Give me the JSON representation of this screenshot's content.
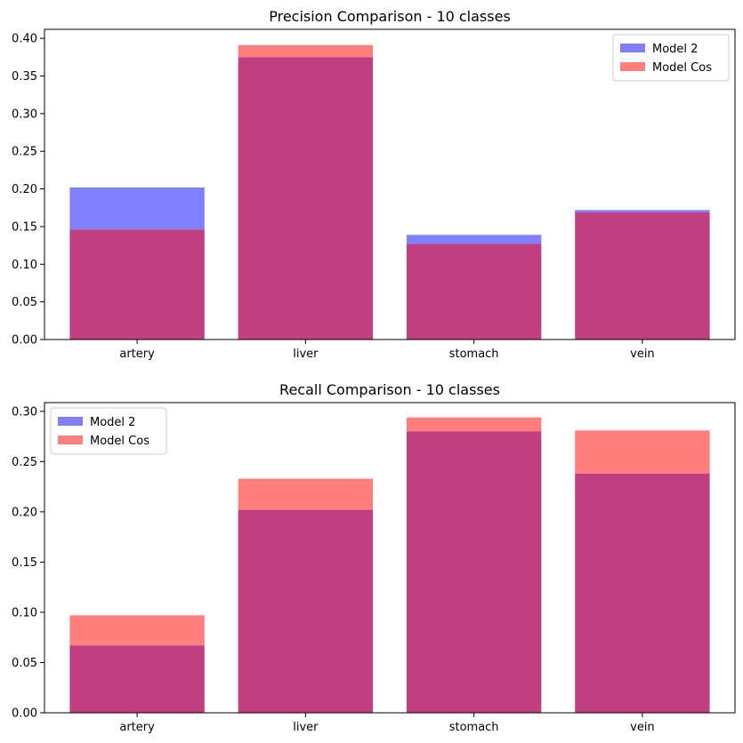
{
  "chart_data": [
    {
      "type": "bar",
      "title": "Precision Comparison - 10 classes",
      "xlabel": "",
      "ylabel": "",
      "categories": [
        "artery",
        "liver",
        "stomach",
        "vein"
      ],
      "series": [
        {
          "name": "Model 2",
          "color": "#7f7fff",
          "values": [
            0.202,
            0.375,
            0.139,
            0.172
          ]
        },
        {
          "name": "Model Cos",
          "color": "#ff7f7f",
          "values": [
            0.146,
            0.391,
            0.127,
            0.169
          ]
        }
      ],
      "overlap_color": "#bf3f7f",
      "ylim": [
        0,
        0.412
      ],
      "yticks": [
        "0.00",
        "0.05",
        "0.10",
        "0.15",
        "0.20",
        "0.25",
        "0.30",
        "0.35",
        "0.40"
      ],
      "legend_position": "top-right",
      "grid": false
    },
    {
      "type": "bar",
      "title": "Recall Comparison - 10 classes",
      "xlabel": "",
      "ylabel": "",
      "categories": [
        "artery",
        "liver",
        "stomach",
        "vein"
      ],
      "series": [
        {
          "name": "Model 2",
          "color": "#7f7fff",
          "values": [
            0.067,
            0.202,
            0.28,
            0.238
          ]
        },
        {
          "name": "Model Cos",
          "color": "#ff7f7f",
          "values": [
            0.097,
            0.233,
            0.294,
            0.281
          ]
        }
      ],
      "overlap_color": "#bf3f7f",
      "ylim": [
        0,
        0.3087
      ],
      "yticks": [
        "0.00",
        "0.05",
        "0.10",
        "0.15",
        "0.20",
        "0.25",
        "0.30"
      ],
      "legend_position": "top-left",
      "grid": false
    }
  ]
}
